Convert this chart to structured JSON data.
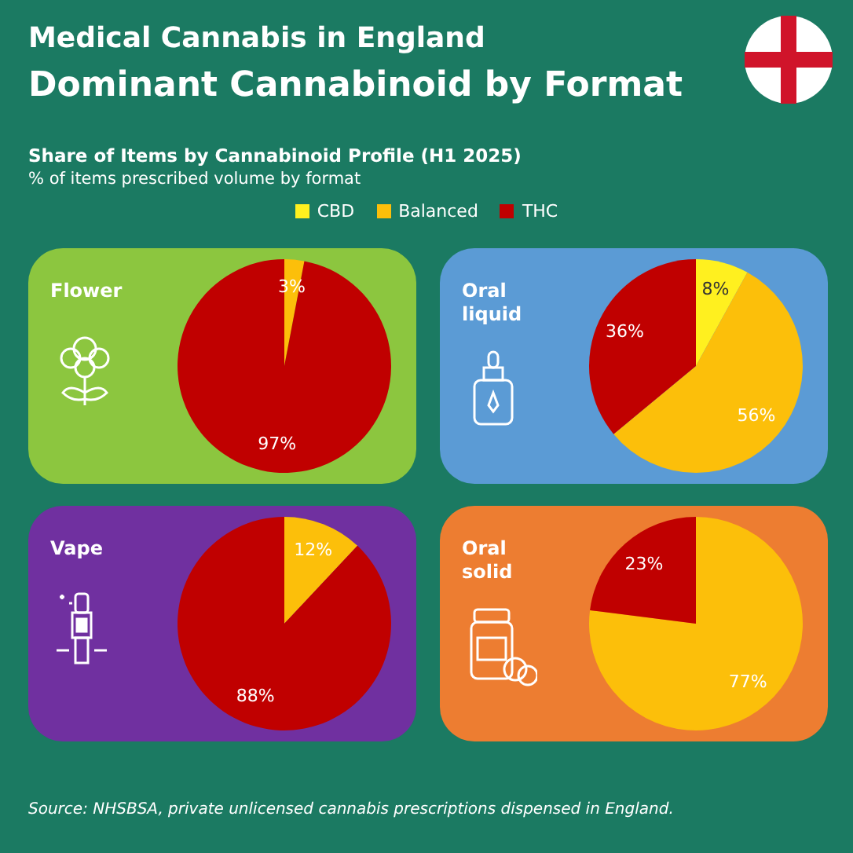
{
  "chart_data": [
    {
      "type": "other",
      "title": "Dominant Cannabinoid by Format",
      "subtitle": "Share of Items by Cannabinoid Profile (H1 2025)",
      "annotations": [
        "Medical Cannabis in England",
        "% of items prescribed volume by format",
        "Source: NHSBSA, private unlicensed cannabis prescriptions dispensed in England."
      ]
    },
    {
      "type": "pie",
      "title": "Flower",
      "categories": [
        null,
        null
      ],
      "values": [
        3,
        97
      ],
      "colors": [
        "#fcbf0a",
        "#c00000"
      ],
      "value_labels": [
        "3%",
        "97%"
      ]
    },
    {
      "type": "pie",
      "title": "Oral liquid",
      "categories": [
        "CBD",
        "Balanced",
        "THC"
      ],
      "values": [
        8,
        56,
        36
      ],
      "colors": [
        "#fff01f",
        "#fcbf0a",
        "#c00000"
      ],
      "value_labels": [
        "8%",
        "56%",
        "36%"
      ],
      "legend": "top"
    },
    {
      "type": "pie",
      "title": "Vape",
      "categories": [
        null,
        null
      ],
      "values": [
        12,
        88
      ],
      "colors": [
        "#fcbf0a",
        "#c00000"
      ],
      "value_labels": [
        "12%",
        "88%"
      ]
    },
    {
      "type": "pie",
      "title": "Oral solid",
      "categories": [
        null,
        null
      ],
      "values": [
        77,
        23
      ],
      "colors": [
        "#fcbf0a",
        "#c00000"
      ],
      "value_labels": [
        "77%",
        "23%"
      ]
    }
  ]
}
